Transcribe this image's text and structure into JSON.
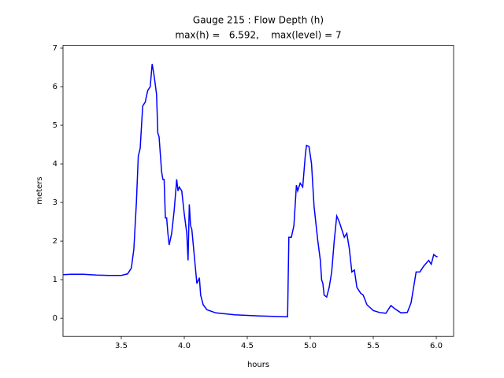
{
  "chart_data": {
    "type": "line",
    "title": "Gauge 215 : Flow Depth (h)",
    "subtitle": "max(h) =   6.592,    max(level) = 7",
    "x_label": "hours",
    "y_label": "meters",
    "color": "#0000ff",
    "x": [
      3.04,
      3.1,
      3.2,
      3.3,
      3.4,
      3.5,
      3.55,
      3.58,
      3.6,
      3.62,
      3.635,
      3.65,
      3.67,
      3.69,
      3.71,
      3.73,
      3.745,
      3.76,
      3.78,
      3.79,
      3.8,
      3.82,
      3.83,
      3.84,
      3.85,
      3.86,
      3.87,
      3.88,
      3.9,
      3.92,
      3.94,
      3.95,
      3.96,
      3.98,
      4.0,
      4.02,
      4.03,
      4.04,
      4.05,
      4.06,
      4.08,
      4.1,
      4.12,
      4.13,
      4.15,
      4.18,
      4.25,
      4.4,
      4.6,
      4.82,
      4.83,
      4.85,
      4.87,
      4.89,
      4.9,
      4.92,
      4.94,
      4.96,
      4.97,
      4.99,
      5.01,
      5.03,
      5.06,
      5.08,
      5.09,
      5.1,
      5.11,
      5.13,
      5.15,
      5.17,
      5.19,
      5.21,
      5.23,
      5.25,
      5.27,
      5.29,
      5.31,
      5.33,
      5.35,
      5.37,
      5.4,
      5.42,
      5.45,
      5.5,
      5.55,
      5.6,
      5.64,
      5.67,
      5.72,
      5.77,
      5.8,
      5.84,
      5.87,
      5.9,
      5.94,
      5.96,
      5.98,
      6.0,
      6.01
    ],
    "values": [
      1.13,
      1.14,
      1.14,
      1.12,
      1.11,
      1.11,
      1.15,
      1.3,
      1.8,
      3.0,
      4.2,
      4.4,
      5.5,
      5.6,
      5.9,
      6.0,
      6.59,
      6.3,
      5.8,
      4.8,
      4.7,
      3.8,
      3.6,
      3.6,
      2.6,
      2.6,
      2.2,
      1.9,
      2.2,
      2.8,
      3.6,
      3.3,
      3.4,
      3.3,
      2.7,
      2.2,
      1.5,
      2.95,
      2.4,
      2.3,
      1.6,
      0.9,
      1.05,
      0.6,
      0.35,
      0.22,
      0.14,
      0.09,
      0.06,
      0.04,
      2.1,
      2.1,
      2.4,
      3.45,
      3.3,
      3.5,
      3.4,
      4.2,
      4.48,
      4.45,
      4.0,
      2.9,
      2.0,
      1.5,
      1.0,
      0.9,
      0.6,
      0.55,
      0.8,
      1.2,
      2.0,
      2.65,
      2.5,
      2.3,
      2.1,
      2.2,
      1.8,
      1.2,
      1.25,
      0.8,
      0.65,
      0.6,
      0.35,
      0.2,
      0.15,
      0.13,
      0.33,
      0.25,
      0.14,
      0.15,
      0.4,
      1.2,
      1.2,
      1.35,
      1.5,
      1.4,
      1.65,
      1.6,
      1.6
    ],
    "xlim": [
      3.0375,
      6.1375
    ],
    "ylim": [
      -0.47,
      7.07
    ],
    "xticks": [
      3.5,
      {
        "value": 4,
        "label": "4.0"
      },
      4.5,
      {
        "value": 5,
        "label": "5.0"
      },
      5.5,
      {
        "value": 6,
        "label": "6.0"
      }
    ],
    "yticks": [
      0,
      1,
      2,
      3,
      4,
      5,
      6,
      7
    ]
  }
}
